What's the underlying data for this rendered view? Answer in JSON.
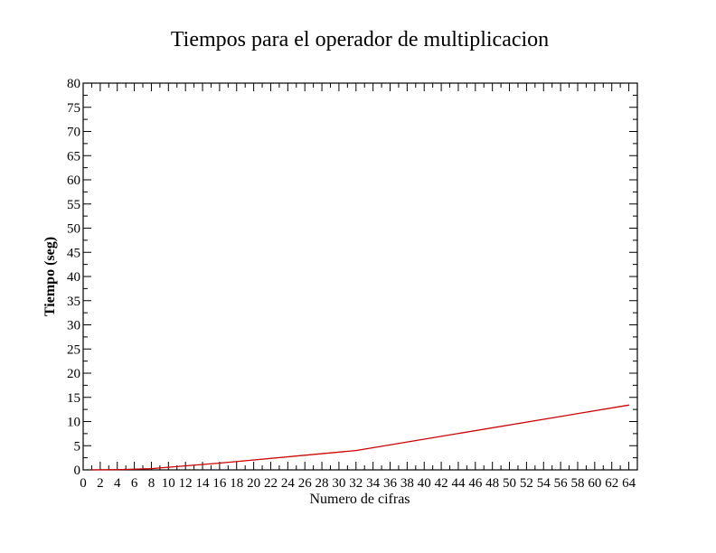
{
  "chart_data": {
    "type": "line",
    "title": "Tiempos para el operador de multiplicacion",
    "xlabel": "Numero de cifras",
    "ylabel": "Tiempo (seg)",
    "xlim": [
      0,
      65
    ],
    "ylim": [
      0,
      80
    ],
    "x_ticks": [
      0,
      2,
      4,
      6,
      8,
      10,
      12,
      14,
      16,
      18,
      20,
      22,
      24,
      26,
      28,
      30,
      32,
      34,
      36,
      38,
      40,
      42,
      44,
      46,
      48,
      50,
      52,
      54,
      56,
      58,
      60,
      62,
      64
    ],
    "y_ticks": [
      0,
      5,
      10,
      15,
      20,
      25,
      30,
      35,
      40,
      45,
      50,
      55,
      60,
      65,
      70,
      75,
      80
    ],
    "grid": false,
    "series": [
      {
        "color": "#cc0000",
        "x": [
          1,
          2,
          4,
          8,
          16,
          32,
          64
        ],
        "y": [
          0.0,
          0.02,
          0.05,
          0.25,
          1.4,
          4.0,
          13.4
        ]
      }
    ]
  }
}
